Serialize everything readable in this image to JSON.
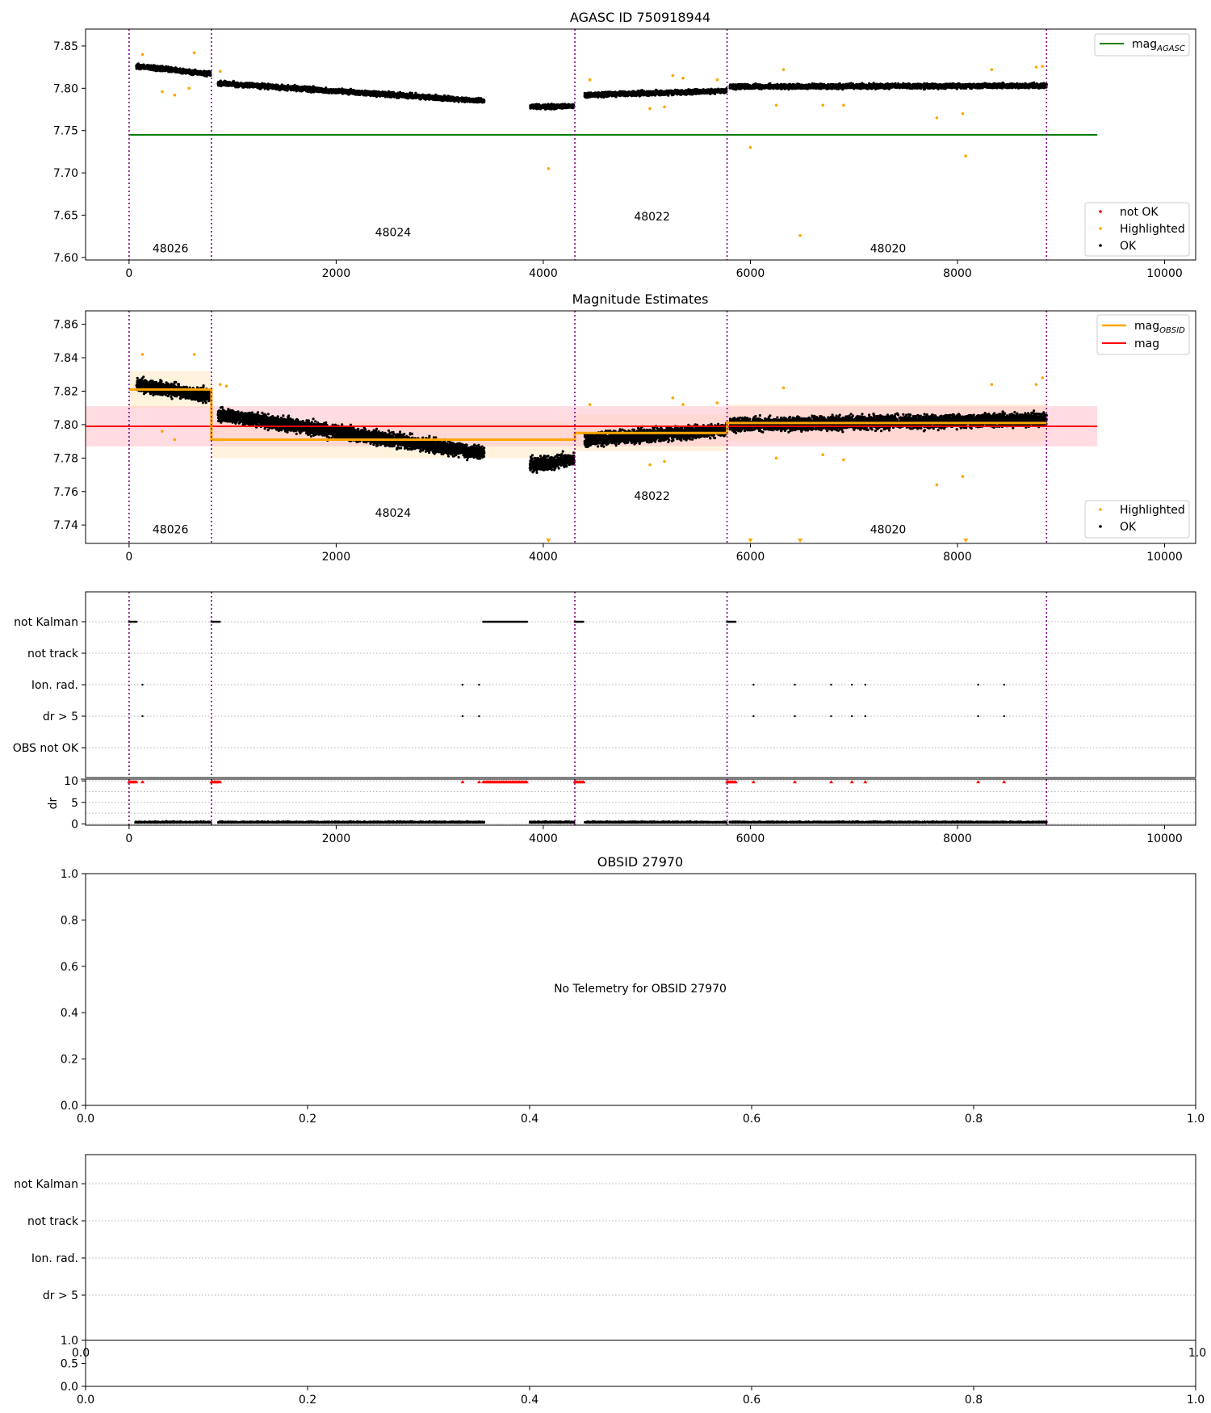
{
  "colors": {
    "ok": "#000000",
    "highlighted": "#ffa500",
    "not_ok": "#ff0000",
    "agasc_line": "#008000",
    "mag_line": "#ff0000",
    "mag_band": "#ffc0cb",
    "obsid_line": "#ffa500",
    "obsid_band": "#ffdca0",
    "boundary": "#800080",
    "grid": "#b0b0b0"
  },
  "chart_data": [
    {
      "type": "scatter",
      "title": "AGASC ID 750918944",
      "xlim": [
        -420,
        10300
      ],
      "ylim": [
        7.597,
        7.87
      ],
      "xticks": [
        "0",
        "2000",
        "4000",
        "6000",
        "8000",
        "10000"
      ],
      "yticks": [
        "7.60",
        "7.65",
        "7.70",
        "7.75",
        "7.80",
        "7.85"
      ],
      "obsid_boundaries": [
        0,
        795,
        4305,
        5775,
        8860
      ],
      "obsid_labels": [
        {
          "label": "48026",
          "x": 400,
          "y": 7.606
        },
        {
          "label": "48024",
          "x": 2550,
          "y": 7.625
        },
        {
          "label": "48022",
          "x": 5050,
          "y": 7.644
        },
        {
          "label": "48020",
          "x": 7330,
          "y": 7.606
        }
      ],
      "mag_agasc": 7.745,
      "line_legend": [
        "mag",
        "AGASC"
      ],
      "scatter_legend": [
        "not OK",
        "Highlighted",
        "OK"
      ],
      "series": [
        {
          "name": "OK",
          "segments": [
            {
              "x": [
                70,
                790
              ],
              "y": [
                7.826,
                7.817
              ]
            },
            {
              "x": [
                860,
                3430
              ],
              "y": [
                7.806,
                7.785
              ]
            },
            {
              "x": [
                3870,
                4300
              ],
              "y": [
                7.778,
                7.779
              ]
            },
            {
              "x": [
                4400,
                5770
              ],
              "y": [
                7.792,
                7.797
              ]
            },
            {
              "x": [
                5800,
                8860
              ],
              "y": [
                7.802,
                7.803
              ]
            }
          ]
        },
        {
          "name": "Highlighted",
          "points": [
            [
              130,
              7.84
            ],
            [
              320,
              7.796
            ],
            [
              440,
              7.792
            ],
            [
              580,
              7.8
            ],
            [
              630,
              7.842
            ],
            [
              880,
              7.82
            ],
            [
              4050,
              7.705
            ],
            [
              4450,
              7.81
            ],
            [
              5030,
              7.776
            ],
            [
              5170,
              7.778
            ],
            [
              5250,
              7.815
            ],
            [
              5350,
              7.812
            ],
            [
              5680,
              7.81
            ],
            [
              6000,
              7.73
            ],
            [
              6250,
              7.78
            ],
            [
              6320,
              7.822
            ],
            [
              6480,
              7.626
            ],
            [
              6700,
              7.78
            ],
            [
              6900,
              7.78
            ],
            [
              7800,
              7.765
            ],
            [
              8050,
              7.77
            ],
            [
              8080,
              7.72
            ],
            [
              8330,
              7.822
            ],
            [
              8760,
              7.825
            ],
            [
              8820,
              7.826
            ]
          ]
        }
      ]
    },
    {
      "type": "scatter",
      "title": "Magnitude Estimates",
      "xlim": [
        -420,
        10300
      ],
      "ylim": [
        7.729,
        7.868
      ],
      "xticks": [
        "0",
        "2000",
        "4000",
        "6000",
        "8000",
        "10000"
      ],
      "yticks": [
        "7.74",
        "7.76",
        "7.78",
        "7.80",
        "7.82",
        "7.84",
        "7.86"
      ],
      "obsid_boundaries": [
        0,
        795,
        4305,
        5775,
        8860
      ],
      "obsid_labels": [
        {
          "label": "48026",
          "x": 400,
          "y": 7.735
        },
        {
          "label": "48024",
          "x": 2550,
          "y": 7.745
        },
        {
          "label": "48022",
          "x": 5050,
          "y": 7.755
        },
        {
          "label": "48020",
          "x": 7330,
          "y": 7.735
        }
      ],
      "mag": 7.799,
      "mag_band": [
        7.787,
        7.811
      ],
      "mag_obsid_segments": [
        {
          "x": [
            0,
            795
          ],
          "y": [
            7.821,
            7.821
          ]
        },
        {
          "x": [
            795,
            4305
          ],
          "y": [
            7.791,
            7.791
          ]
        },
        {
          "x": [
            4305,
            5775
          ],
          "y": [
            7.795,
            7.795
          ]
        },
        {
          "x": [
            5775,
            8860
          ],
          "y": [
            7.801,
            7.801
          ]
        }
      ],
      "line_legend": [
        [
          "mag",
          "OBSID"
        ],
        [
          "mag",
          ""
        ]
      ],
      "scatter_legend": [
        "Highlighted",
        "OK"
      ],
      "series": [
        {
          "name": "OK",
          "segments": [
            {
              "x": [
                70,
                790
              ],
              "y": [
                7.824,
                7.817
              ]
            },
            {
              "x": [
                860,
                3430
              ],
              "y": [
                7.806,
                7.783
              ]
            },
            {
              "x": [
                3870,
                4300
              ],
              "y": [
                7.776,
                7.779
              ]
            },
            {
              "x": [
                4400,
                5770
              ],
              "y": [
                7.791,
                7.797
              ]
            },
            {
              "x": [
                5800,
                8860
              ],
              "y": [
                7.8,
                7.803
              ]
            }
          ]
        },
        {
          "name": "Highlighted",
          "points": [
            [
              130,
              7.842
            ],
            [
              320,
              7.796
            ],
            [
              440,
              7.791
            ],
            [
              630,
              7.842
            ],
            [
              880,
              7.824
            ],
            [
              940,
              7.823
            ],
            [
              4450,
              7.812
            ],
            [
              5030,
              7.776
            ],
            [
              5170,
              7.778
            ],
            [
              5250,
              7.816
            ],
            [
              5350,
              7.812
            ],
            [
              5680,
              7.813
            ],
            [
              6250,
              7.78
            ],
            [
              6320,
              7.822
            ],
            [
              6700,
              7.782
            ],
            [
              6900,
              7.779
            ],
            [
              7800,
              7.764
            ],
            [
              8050,
              7.769
            ],
            [
              8330,
              7.824
            ],
            [
              8760,
              7.824
            ],
            [
              8820,
              7.828
            ]
          ]
        },
        {
          "name": "Highlighted below axis",
          "points": [
            [
              4050,
              7.73
            ],
            [
              6000,
              7.73
            ],
            [
              6480,
              7.73
            ],
            [
              8080,
              7.73
            ]
          ]
        }
      ]
    },
    {
      "type": "scatter",
      "xlim": [
        -420,
        10300
      ],
      "xticks": [
        "0",
        "2000",
        "4000",
        "6000",
        "8000",
        "10000"
      ],
      "flag_rows": [
        "not Kalman",
        "not track",
        "Ion. rad.",
        "dr > 5",
        "OBS not OK"
      ],
      "obsid_boundaries": [
        0,
        795,
        4305,
        5775,
        8860
      ],
      "flag_intervals": {
        "not Kalman": [
          [
            0,
            80
          ],
          [
            795,
            880
          ],
          [
            3420,
            3850
          ],
          [
            4305,
            4390
          ],
          [
            5775,
            5860
          ]
        ]
      },
      "flag_points": {
        "Ion. rad.": [
          130,
          3220,
          3380,
          6030,
          6430,
          6780,
          6980,
          7110,
          8200,
          8450
        ],
        "dr > 5": [
          130,
          3220,
          3380,
          6030,
          6430,
          6780,
          6980,
          7110,
          8200,
          8450
        ]
      },
      "dr_ylabel": "dr",
      "dr_yticks": [
        "0",
        "5",
        "10"
      ],
      "dr_ylim": [
        -0.3,
        10.4
      ],
      "dr_ok_segments": [
        [
          60,
          790
        ],
        [
          860,
          3430
        ],
        [
          3870,
          4300
        ],
        [
          4400,
          5770
        ],
        [
          5800,
          8860
        ]
      ],
      "dr_clipped_intervals": [
        [
          0,
          80
        ],
        [
          795,
          880
        ],
        [
          3420,
          3850
        ],
        [
          4305,
          4390
        ],
        [
          5775,
          5860
        ]
      ],
      "dr_clipped_points": [
        130,
        3220,
        3380,
        6030,
        6430,
        6780,
        6980,
        7110,
        8200,
        8450
      ]
    },
    {
      "type": "scatter",
      "title": "OBSID 27970",
      "xlim": [
        0,
        1
      ],
      "ylim": [
        0,
        1
      ],
      "xticks": [
        "0.0",
        "0.2",
        "0.4",
        "0.6",
        "0.8",
        "1.0"
      ],
      "yticks": [
        "0.0",
        "0.2",
        "0.4",
        "0.6",
        "0.8",
        "1.0"
      ],
      "message": "No Telemetry for OBSID 27970"
    },
    {
      "type": "scatter",
      "flag_rows": [
        "not Kalman",
        "not track",
        "Ion. rad.",
        "dr > 5"
      ],
      "top_xticks": [
        "0.0",
        "1.0"
      ],
      "bottom_yticks": [
        "0.0",
        "0.5",
        "1.0"
      ],
      "bottom_xticks": [
        "0.0",
        "0.2",
        "0.4",
        "0.6",
        "0.8",
        "1.0"
      ]
    }
  ]
}
